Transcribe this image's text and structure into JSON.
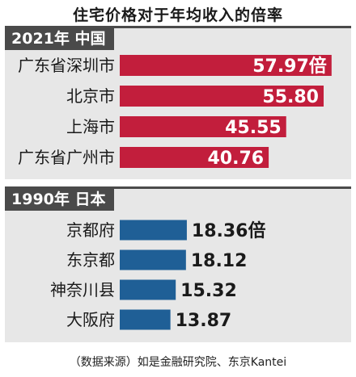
{
  "title": "住宅价格对于年均收入的倍率",
  "source": "（数据来源）如是金融研究院、东京Kantei",
  "colors": {
    "header_bg": "#4a4a4a",
    "header_text": "#ffffff",
    "panel_bg": "#e7e7e7",
    "china_bar": "#c21e3c",
    "japan_bar": "#1f5f96"
  },
  "chart_data": [
    {
      "type": "bar",
      "orientation": "horizontal",
      "header": "2021年 中国",
      "categories": [
        "广东省深圳市",
        "北京市",
        "上海市",
        "广东省广州市"
      ],
      "value_labels": [
        "57.97倍",
        "55.80",
        "45.55",
        "40.76"
      ],
      "values": [
        57.97,
        55.8,
        45.55,
        40.76
      ],
      "label_position": "inside-end",
      "xlim": [
        0,
        62
      ]
    },
    {
      "type": "bar",
      "orientation": "horizontal",
      "header": "1990年 日本",
      "categories": [
        "京都府",
        "东京都",
        "神奈川县",
        "大阪府"
      ],
      "value_labels": [
        "18.36倍",
        "18.12",
        "15.32",
        "13.87"
      ],
      "values": [
        18.36,
        18.12,
        15.32,
        13.87
      ],
      "label_position": "outside-end",
      "xlim": [
        0,
        62
      ]
    }
  ]
}
